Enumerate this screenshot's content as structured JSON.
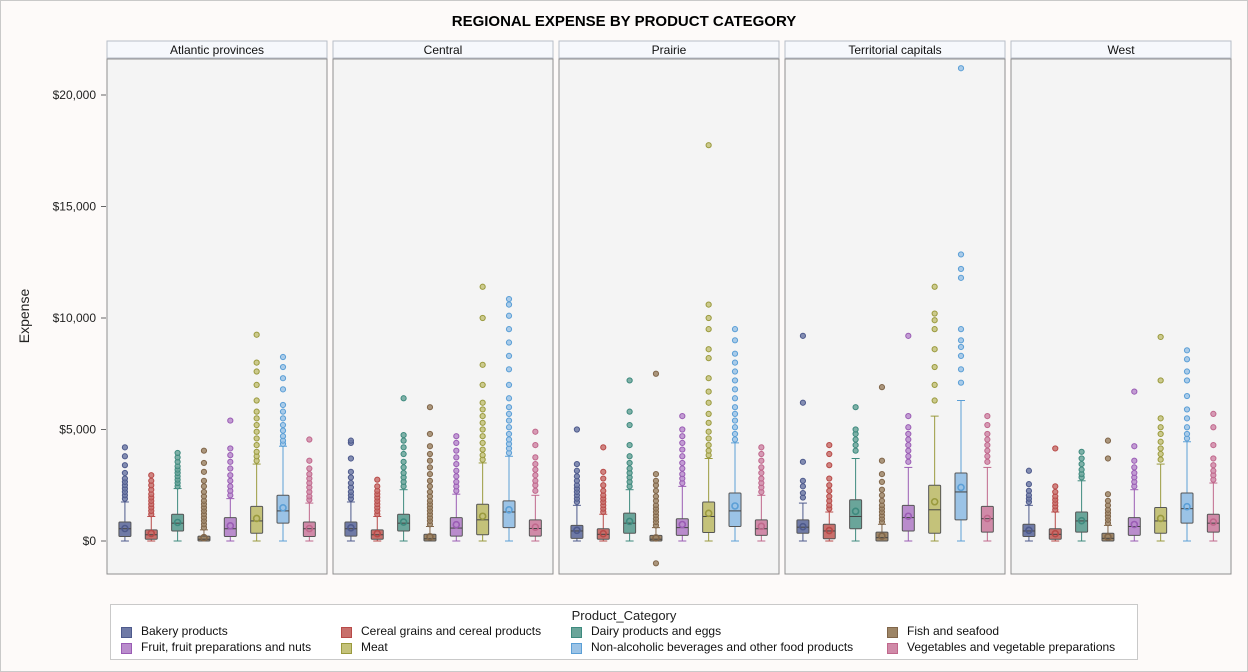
{
  "title": "REGIONAL EXPENSE BY PRODUCT CATEGORY",
  "chart_data": {
    "type": "box",
    "title": "REGIONAL EXPENSE BY PRODUCT CATEGORY",
    "ylabel": "Expense",
    "ylim": [
      -1500,
      21500
    ],
    "yticks": [
      0,
      5000,
      10000,
      15000,
      20000
    ],
    "ytick_labels": [
      "$0",
      "$5,000",
      "$10,000",
      "$15,000",
      "$20,000"
    ],
    "grid": false,
    "legend_title": "Product_Category",
    "legend_position": "bottom",
    "categories": [
      "Bakery products",
      "Cereal grains and cereal products",
      "Dairy products and eggs",
      "Fish and seafood",
      "Fruit, fruit preparations and nuts",
      "Meat",
      "Non-alcoholic beverages and other food products",
      "Vegetables and vegetable preparations"
    ],
    "colors": [
      "#4e5a8c",
      "#b84a48",
      "#3e8a7e",
      "#80664a",
      "#9a5cb4",
      "#9a9a3e",
      "#5b9fd6",
      "#c0688c"
    ],
    "fill_colors": [
      "#6f7aa6",
      "#c8706c",
      "#6aa59a",
      "#9d8566",
      "#b98ccc",
      "#c4c27a",
      "#9bc3e6",
      "#d08aa8"
    ],
    "panels": [
      {
        "name": "Atlantic provinces",
        "boxes": [
          {
            "q1": 200,
            "median": 550,
            "q3": 850,
            "mean": 560,
            "whisker_low": 0,
            "whisker_high": 1750,
            "outliers": [
              1900,
              2050,
              2200,
              2350,
              2500,
              2650,
              2800,
              3050,
              3400,
              3800,
              4200
            ]
          },
          {
            "q1": 80,
            "median": 280,
            "q3": 500,
            "mean": 340,
            "whisker_low": 0,
            "whisker_high": 1100,
            "outliers": [
              1200,
              1350,
              1500,
              1650,
              1800,
              1950,
              2100,
              2300,
              2500,
              2700,
              2950
            ]
          },
          {
            "q1": 450,
            "median": 800,
            "q3": 1200,
            "mean": 830,
            "whisker_low": 0,
            "whisker_high": 2350,
            "outliers": [
              2450,
              2600,
              2750,
              2900,
              3050,
              3200,
              3350,
              3550,
              3750,
              3950
            ]
          },
          {
            "q1": 0,
            "median": 80,
            "q3": 220,
            "mean": 150,
            "whisker_low": 0,
            "whisker_high": 500,
            "outliers": [
              600,
              750,
              900,
              1050,
              1200,
              1350,
              1500,
              1650,
              1800,
              2000,
              2200,
              2450,
              2700,
              3100,
              3500,
              4050
            ]
          },
          {
            "q1": 200,
            "median": 550,
            "q3": 1050,
            "mean": 680,
            "whisker_low": 0,
            "whisker_high": 1900,
            "outliers": [
              2050,
              2250,
              2450,
              2700,
              2950,
              3250,
              3550,
              3850,
              4150,
              5400
            ]
          },
          {
            "q1": 350,
            "median": 900,
            "q3": 1550,
            "mean": 1010,
            "whisker_low": 0,
            "whisker_high": 3450,
            "outliers": [
              3600,
              3800,
              4000,
              4300,
              4600,
              4900,
              5200,
              5500,
              5800,
              6300,
              7000,
              7600,
              8000,
              9250
            ]
          },
          {
            "q1": 800,
            "median": 1350,
            "q3": 2050,
            "mean": 1490,
            "whisker_low": 0,
            "whisker_high": 4250,
            "outliers": [
              4350,
              4500,
              4700,
              4950,
              5200,
              5500,
              5800,
              6100,
              6800,
              7300,
              7800,
              8250
            ]
          },
          {
            "q1": 200,
            "median": 550,
            "q3": 850,
            "mean": 560,
            "whisker_low": 0,
            "whisker_high": 1700,
            "outliers": [
              1850,
              2000,
              2200,
              2400,
              2600,
              2800,
              3000,
              3250,
              3600,
              4550
            ]
          }
        ]
      },
      {
        "name": "Central",
        "boxes": [
          {
            "q1": 220,
            "median": 550,
            "q3": 850,
            "mean": 590,
            "whisker_low": 0,
            "whisker_high": 1750,
            "outliers": [
              1900,
              2050,
              2200,
              2400,
              2600,
              2850,
              3100,
              3700,
              4400,
              4500
            ]
          },
          {
            "q1": 80,
            "median": 280,
            "q3": 500,
            "mean": 330,
            "whisker_low": 0,
            "whisker_high": 1100,
            "outliers": [
              1200,
              1350,
              1500,
              1650,
              1800,
              1950,
              2100,
              2250,
              2450,
              2750
            ]
          },
          {
            "q1": 450,
            "median": 800,
            "q3": 1200,
            "mean": 850,
            "whisker_low": 0,
            "whisker_high": 2300,
            "outliers": [
              2450,
              2650,
              2850,
              3050,
              3300,
              3550,
              3900,
              4200,
              4500,
              4750,
              6400
            ]
          },
          {
            "q1": 0,
            "median": 100,
            "q3": 300,
            "mean": 190,
            "whisker_low": 0,
            "whisker_high": 650,
            "outliers": [
              750,
              900,
              1050,
              1200,
              1350,
              1500,
              1650,
              1800,
              2000,
              2200,
              2450,
              2700,
              3000,
              3300,
              3600,
              3900,
              4250,
              4800,
              6000
            ]
          },
          {
            "q1": 220,
            "median": 580,
            "q3": 1050,
            "mean": 730,
            "whisker_low": 0,
            "whisker_high": 2100,
            "outliers": [
              2250,
              2450,
              2650,
              2900,
              3150,
              3450,
              3750,
              4050,
              4400,
              4700
            ]
          },
          {
            "q1": 280,
            "median": 950,
            "q3": 1650,
            "mean": 1110,
            "whisker_low": 0,
            "whisker_high": 3500,
            "outliers": [
              3650,
              3850,
              4100,
              4400,
              4700,
              5000,
              5300,
              5600,
              5900,
              6200,
              7000,
              7900,
              10000,
              11400
            ]
          },
          {
            "q1": 600,
            "median": 1300,
            "q3": 1800,
            "mean": 1400,
            "whisker_low": 0,
            "whisker_high": 3800,
            "outliers": [
              3950,
              4150,
              4350,
              4550,
              4800,
              5100,
              5400,
              5700,
              6000,
              6400,
              7000,
              7700,
              8300,
              8900,
              9500,
              10100,
              10600,
              10850
            ]
          },
          {
            "q1": 220,
            "median": 560,
            "q3": 950,
            "mean": 620,
            "whisker_low": 0,
            "whisker_high": 2050,
            "outliers": [
              2250,
              2500,
              2700,
              2950,
              3200,
              3450,
              3750,
              4300,
              4900
            ]
          }
        ]
      },
      {
        "name": "Prairie",
        "boxes": [
          {
            "q1": 120,
            "median": 450,
            "q3": 700,
            "mean": 480,
            "whisker_low": 0,
            "whisker_high": 1600,
            "outliers": [
              1750,
              1900,
              2050,
              2200,
              2350,
              2500,
              2700,
              2900,
              3150,
              3450,
              5000
            ]
          },
          {
            "q1": 80,
            "median": 300,
            "q3": 550,
            "mean": 330,
            "whisker_low": 0,
            "whisker_high": 1200,
            "outliers": [
              1300,
              1450,
              1600,
              1750,
              1900,
              2050,
              2250,
              2500,
              2800,
              3100,
              4200
            ]
          },
          {
            "q1": 350,
            "median": 800,
            "q3": 1250,
            "mean": 880,
            "whisker_low": 0,
            "whisker_high": 2300,
            "outliers": [
              2450,
              2650,
              2850,
              3050,
              3250,
              3500,
              3800,
              4300,
              5200,
              5800,
              7200
            ]
          },
          {
            "q1": 0,
            "median": 80,
            "q3": 250,
            "mean": 140,
            "whisker_low": 0,
            "whisker_high": 600,
            "outliers": [
              700,
              850,
              1000,
              1150,
              1300,
              1450,
              1600,
              1800,
              2000,
              2250,
              2500,
              2700,
              3000,
              7500,
              -1000
            ]
          },
          {
            "q1": 250,
            "median": 600,
            "q3": 1000,
            "mean": 740,
            "whisker_low": 0,
            "whisker_high": 2450,
            "outliers": [
              2600,
              2800,
              3000,
              3250,
              3500,
              3800,
              4100,
              4400,
              4700,
              5000,
              5600
            ]
          },
          {
            "q1": 380,
            "median": 1100,
            "q3": 1750,
            "mean": 1240,
            "whisker_low": 0,
            "whisker_high": 3700,
            "outliers": [
              3850,
              4050,
              4300,
              4600,
              4900,
              5300,
              5700,
              6200,
              6700,
              7300,
              8200,
              8600,
              9500,
              10000,
              10600,
              17750
            ]
          },
          {
            "q1": 650,
            "median": 1350,
            "q3": 2150,
            "mean": 1570,
            "whisker_low": 0,
            "whisker_high": 4400,
            "outliers": [
              4550,
              4800,
              5100,
              5400,
              5700,
              6000,
              6400,
              6800,
              7200,
              7600,
              8000,
              8400,
              9000,
              9500
            ]
          },
          {
            "q1": 250,
            "median": 550,
            "q3": 950,
            "mean": 660,
            "whisker_low": 0,
            "whisker_high": 2050,
            "outliers": [
              2200,
              2400,
              2600,
              2800,
              3050,
              3300,
              3600,
              3900,
              4200
            ]
          }
        ]
      },
      {
        "name": "Territorial capitals",
        "boxes": [
          {
            "q1": 350,
            "median": 620,
            "q3": 950,
            "mean": 640,
            "whisker_low": 0,
            "whisker_high": 1700,
            "outliers": [
              1950,
              2150,
              2450,
              2700,
              3550,
              6200,
              9200
            ]
          },
          {
            "q1": 100,
            "median": 450,
            "q3": 750,
            "mean": 470,
            "whisker_low": 0,
            "whisker_high": 1300,
            "outliers": [
              1450,
              1600,
              1800,
              2000,
              2250,
              2500,
              2800,
              3400,
              3900,
              4300
            ]
          },
          {
            "q1": 550,
            "median": 1100,
            "q3": 1850,
            "mean": 1330,
            "whisker_low": 0,
            "whisker_high": 3700,
            "outliers": [
              4050,
              4300,
              4550,
              4800,
              5000,
              6000
            ]
          },
          {
            "q1": 0,
            "median": 150,
            "q3": 400,
            "mean": 220,
            "whisker_low": 0,
            "whisker_high": 750,
            "outliers": [
              850,
              1000,
              1150,
              1300,
              1450,
              1600,
              1800,
              2050,
              2300,
              2650,
              3000,
              3600,
              6900
            ]
          },
          {
            "q1": 450,
            "median": 1050,
            "q3": 1600,
            "mean": 1110,
            "whisker_low": 0,
            "whisker_high": 3300,
            "outliers": [
              3550,
              3800,
              4050,
              4300,
              4550,
              4800,
              5100,
              5600,
              9200
            ]
          },
          {
            "q1": 350,
            "median": 1400,
            "q3": 2500,
            "mean": 1760,
            "whisker_low": 0,
            "whisker_high": 5600,
            "outliers": [
              6300,
              7000,
              7800,
              8600,
              9500,
              9900,
              10200,
              11400
            ]
          },
          {
            "q1": 950,
            "median": 2200,
            "q3": 3050,
            "mean": 2400,
            "whisker_low": 0,
            "whisker_high": 6300,
            "outliers": [
              7100,
              7700,
              8300,
              8700,
              9000,
              9500,
              11800,
              12200,
              12850,
              21200
            ]
          },
          {
            "q1": 400,
            "median": 1000,
            "q3": 1550,
            "mean": 1010,
            "whisker_low": 0,
            "whisker_high": 3300,
            "outliers": [
              3550,
              3800,
              4050,
              4300,
              4550,
              4800,
              5200,
              5600
            ]
          }
        ]
      },
      {
        "name": "West",
        "boxes": [
          {
            "q1": 200,
            "median": 450,
            "q3": 750,
            "mean": 480,
            "whisker_low": 0,
            "whisker_high": 1600,
            "outliers": [
              1750,
              1900,
              2050,
              2250,
              2550,
              3150
            ]
          },
          {
            "q1": 80,
            "median": 300,
            "q3": 550,
            "mean": 330,
            "whisker_low": 0,
            "whisker_high": 1300,
            "outliers": [
              1400,
              1550,
              1700,
              1850,
              2000,
              2200,
              2450,
              4150
            ]
          },
          {
            "q1": 400,
            "median": 900,
            "q3": 1300,
            "mean": 910,
            "whisker_low": 0,
            "whisker_high": 2700,
            "outliers": [
              2850,
              3000,
              3200,
              3450,
              3700,
              4000
            ]
          },
          {
            "q1": 0,
            "median": 120,
            "q3": 350,
            "mean": 180,
            "whisker_low": 0,
            "whisker_high": 700,
            "outliers": [
              800,
              950,
              1100,
              1250,
              1400,
              1600,
              1800,
              2100,
              3700,
              4500
            ]
          },
          {
            "q1": 250,
            "median": 650,
            "q3": 1050,
            "mean": 740,
            "whisker_low": 0,
            "whisker_high": 2300,
            "outliers": [
              2450,
              2650,
              2850,
              3050,
              3300,
              3600,
              4250,
              6700
            ]
          },
          {
            "q1": 350,
            "median": 900,
            "q3": 1500,
            "mean": 1010,
            "whisker_low": 0,
            "whisker_high": 3450,
            "outliers": [
              3650,
              3900,
              4150,
              4450,
              4800,
              5100,
              5500,
              7200,
              9150
            ]
          },
          {
            "q1": 800,
            "median": 1450,
            "q3": 2150,
            "mean": 1540,
            "whisker_low": 0,
            "whisker_high": 4450,
            "outliers": [
              4600,
              4800,
              5100,
              5500,
              5900,
              6500,
              7200,
              7600,
              8150,
              8550
            ]
          },
          {
            "q1": 400,
            "median": 800,
            "q3": 1200,
            "mean": 850,
            "whisker_low": 0,
            "whisker_high": 2600,
            "outliers": [
              2750,
              2950,
              3150,
              3400,
              3700,
              4300,
              5100,
              5700
            ]
          }
        ]
      }
    ]
  }
}
